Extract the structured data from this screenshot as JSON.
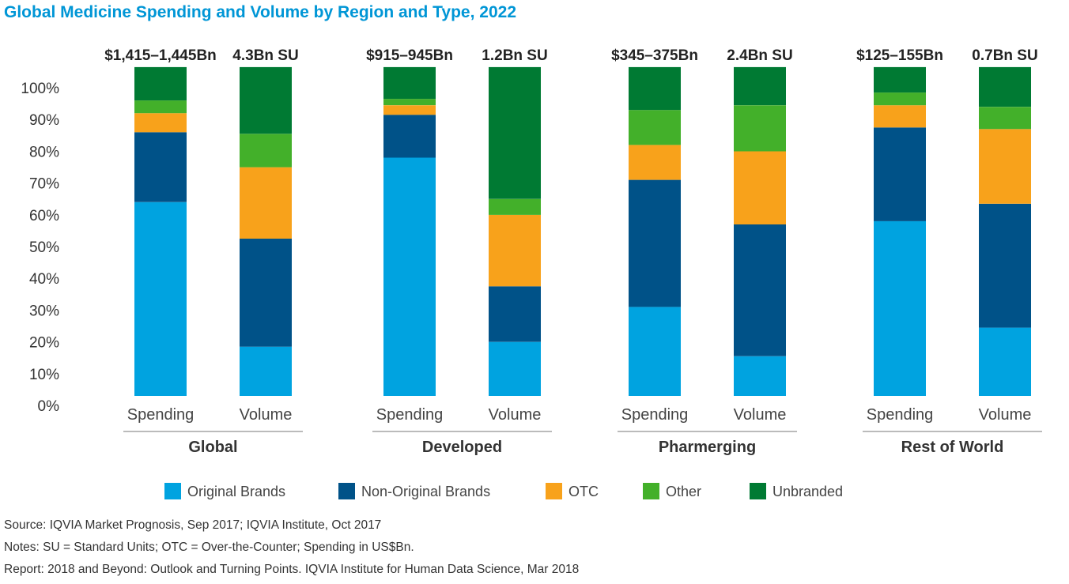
{
  "chart_data": {
    "type": "bar",
    "stacked": true,
    "title": "Global Medicine Spending and Volume by Region and Type, 2022",
    "title_color": "#0096d6",
    "y_ticks": [
      "0%",
      "10%",
      "20%",
      "30%",
      "40%",
      "50%",
      "60%",
      "70%",
      "80%",
      "90%",
      "100%"
    ],
    "ylim": [
      0,
      100
    ],
    "series": [
      {
        "name": "Original Brands",
        "color": "#00a3e0"
      },
      {
        "name": "Non-Original Brands",
        "color": "#005288"
      },
      {
        "name": "OTC",
        "color": "#f8a21b"
      },
      {
        "name": "Other",
        "color": "#43b02a"
      },
      {
        "name": "Unbranded",
        "color": "#007a33"
      }
    ],
    "groups": [
      {
        "name": "Global",
        "bars": [
          {
            "category": "Spending",
            "top_label": "$1,415–1,445Bn",
            "values": [
              61,
              22,
              6,
              4,
              10.5
            ]
          },
          {
            "category": "Volume",
            "top_label": "4.3Bn SU",
            "values": [
              15.5,
              34,
              22.5,
              10.5,
              21
            ]
          }
        ]
      },
      {
        "name": "Developed",
        "bars": [
          {
            "category": "Spending",
            "top_label": "$915–945Bn",
            "values": [
              75,
              13.5,
              3,
              2,
              10
            ]
          },
          {
            "category": "Volume",
            "top_label": "1.2Bn SU",
            "values": [
              17,
              17.5,
              22.5,
              5,
              41.5
            ]
          }
        ]
      },
      {
        "name": "Pharmerging",
        "bars": [
          {
            "category": "Spending",
            "top_label": "$345–375Bn",
            "values": [
              28,
              40,
              11,
              11,
              13.5
            ]
          },
          {
            "category": "Volume",
            "top_label": "2.4Bn SU",
            "values": [
              12.5,
              41.5,
              23,
              14.5,
              12
            ]
          }
        ]
      },
      {
        "name": "Rest of World",
        "bars": [
          {
            "category": "Spending",
            "top_label": "$125–155Bn",
            "values": [
              55,
              29.5,
              7,
              4,
              8
            ]
          },
          {
            "category": "Volume",
            "top_label": "0.7Bn SU",
            "values": [
              21.5,
              39,
              23.5,
              7,
              12.5
            ]
          }
        ]
      }
    ]
  },
  "footer": {
    "source": "Source: IQVIA Market Prognosis, Sep 2017; IQVIA Institute, Oct 2017",
    "notes": "Notes: SU = Standard Units; OTC = Over-the-Counter; Spending in US$Bn.",
    "report": "Report: 2018 and Beyond: Outlook and Turning Points. IQVIA Institute for Human Data Science, Mar 2018"
  }
}
